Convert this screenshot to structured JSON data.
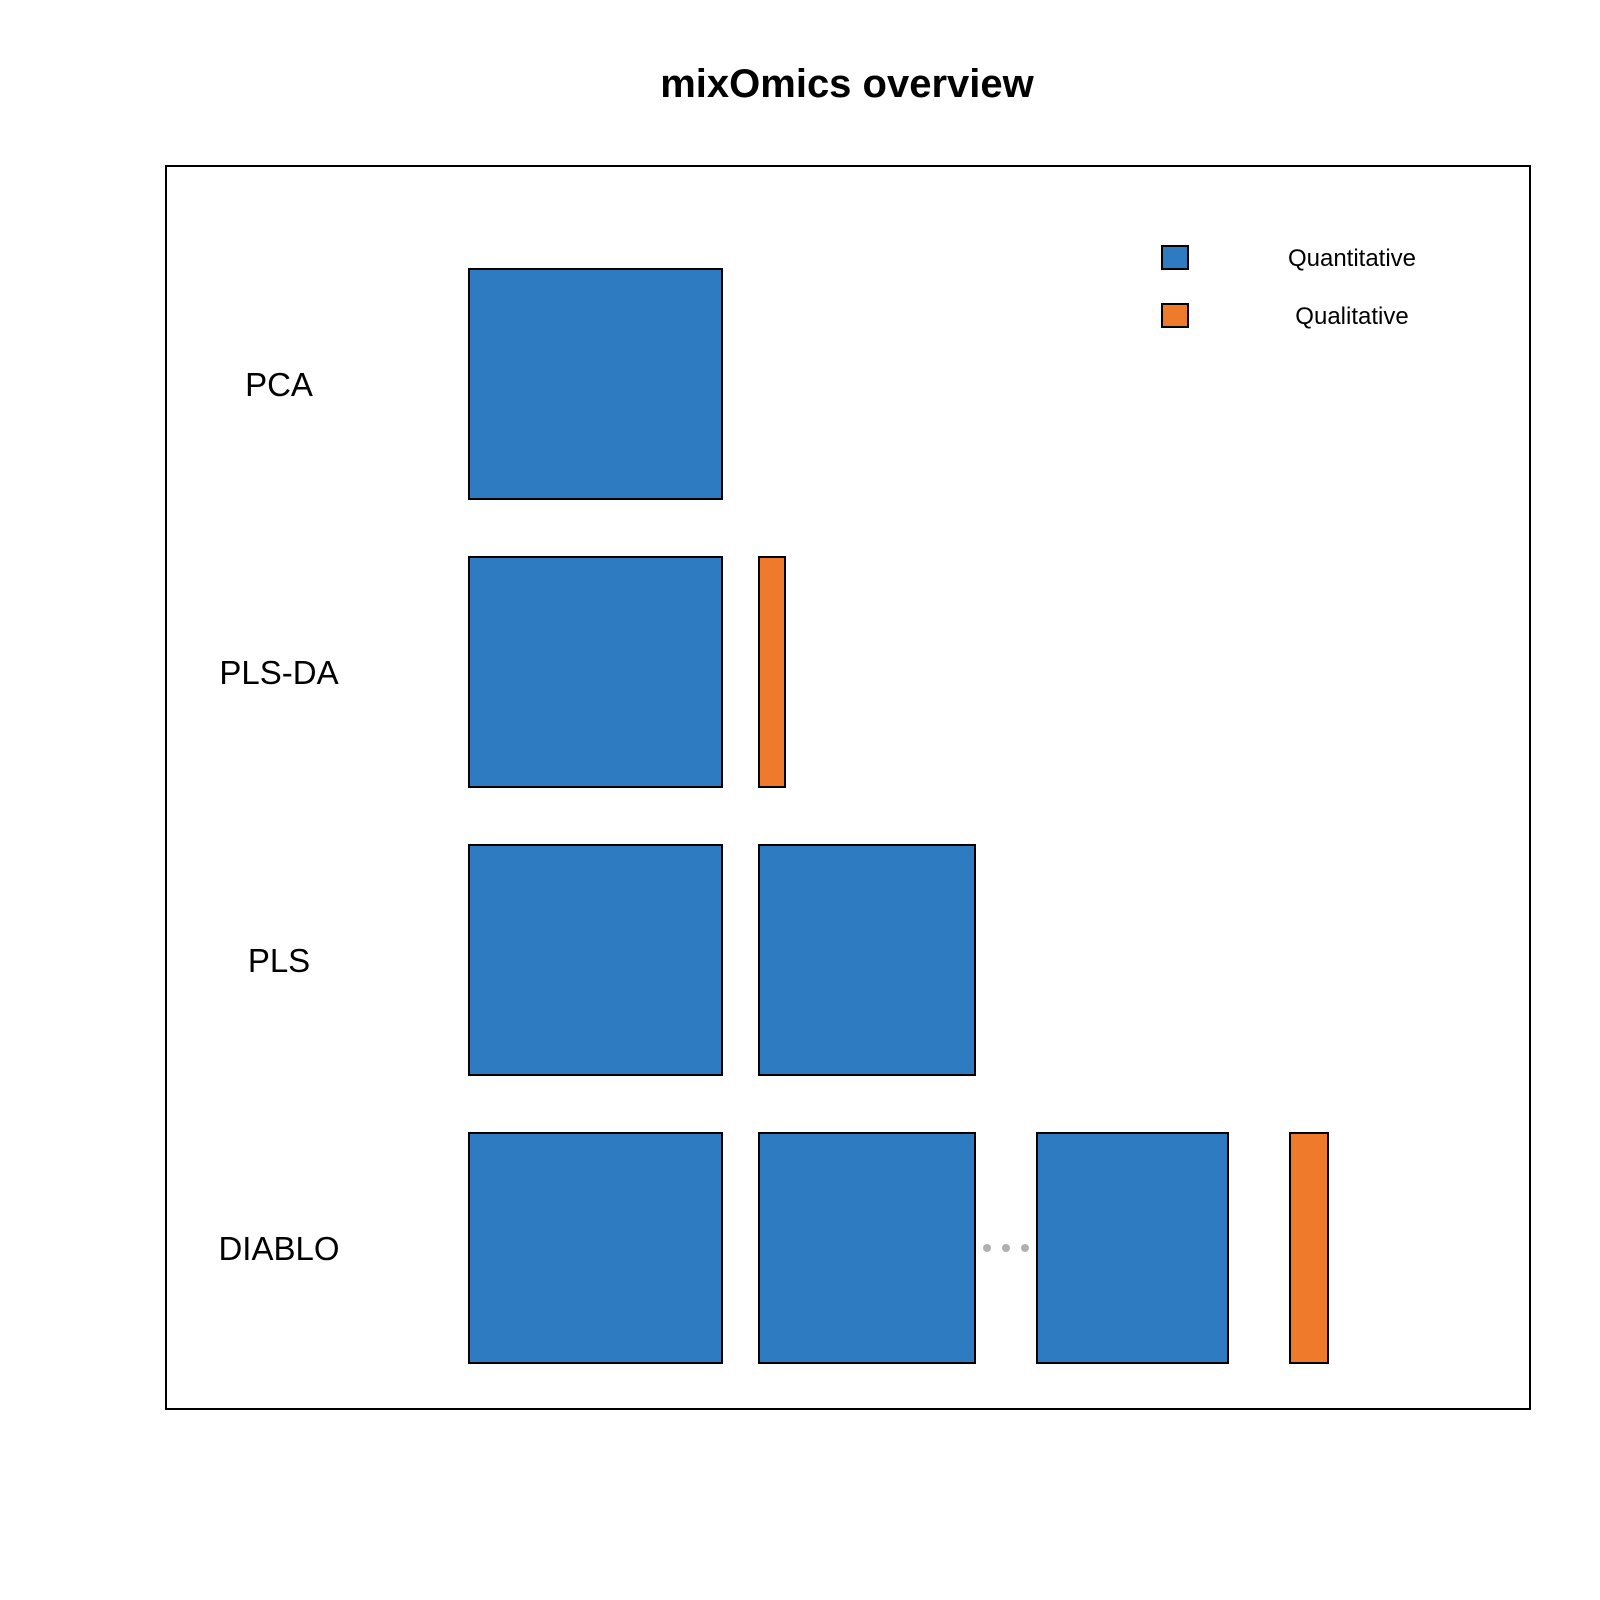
{
  "title": "mixOmics overview",
  "colors": {
    "quantitative": "#2f7bc1",
    "qualitative": "#f07a2c",
    "ellipsis": "#b0b0b0"
  },
  "legend": {
    "items": [
      {
        "label": "Quantitative",
        "type": "quantitative"
      },
      {
        "label": "Qualitative",
        "type": "qualitative"
      }
    ]
  },
  "rows": [
    {
      "label": "PCA",
      "blocks": [
        "quantitative-large"
      ]
    },
    {
      "label": "PLS-DA",
      "blocks": [
        "quantitative-large",
        "qualitative-bar"
      ]
    },
    {
      "label": "PLS",
      "blocks": [
        "quantitative-large",
        "quantitative-medium"
      ]
    },
    {
      "label": "DIABLO",
      "blocks": [
        "quantitative-large",
        "quantitative-medium",
        "ellipsis",
        "quantitative-medium",
        "qualitative-bar"
      ]
    }
  ]
}
